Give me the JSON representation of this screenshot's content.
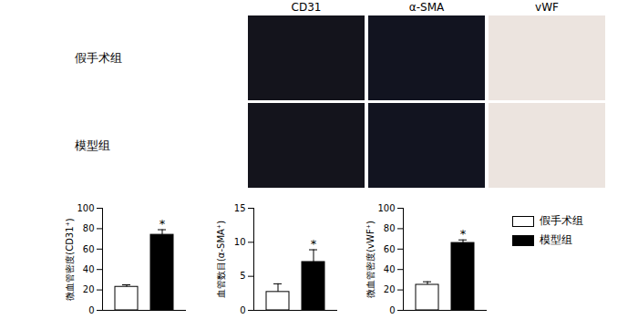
{
  "image_panel": {
    "columns": [
      "CD31",
      "α-SMA",
      "vWF"
    ],
    "rows": [
      "假手术组",
      "模型组"
    ]
  },
  "chart_data": [
    {
      "type": "bar",
      "ylabel": "微血管密度(CD31⁺)",
      "ylim": [
        0,
        100
      ],
      "yticks": [
        0,
        20,
        40,
        60,
        80,
        100
      ],
      "tick_labels": "y",
      "series": [
        {
          "name": "假手术组",
          "color": "#ffffff",
          "values": [
            23
          ],
          "error": [
            2
          ]
        },
        {
          "name": "模型组",
          "color": "#000000",
          "values": [
            74
          ],
          "error": [
            5
          ]
        }
      ],
      "annotations": [
        {
          "series": "模型组",
          "text": "*"
        }
      ]
    },
    {
      "type": "bar",
      "ylabel": "血管数目(α-SMA⁺)",
      "ylim": [
        0,
        15
      ],
      "yticks": [
        0,
        5,
        10,
        15
      ],
      "tick_labels": "y",
      "series": [
        {
          "name": "假手术组",
          "color": "#ffffff",
          "values": [
            2.7
          ],
          "error": [
            1.2
          ]
        },
        {
          "name": "模型组",
          "color": "#000000",
          "values": [
            7.1
          ],
          "error": [
            1.8
          ]
        }
      ],
      "annotations": [
        {
          "series": "模型组",
          "text": "*"
        }
      ]
    },
    {
      "type": "bar",
      "ylabel": "微血管密度(vWF⁺)",
      "ylim": [
        0,
        100
      ],
      "yticks": [
        0,
        20,
        40,
        60,
        80,
        100
      ],
      "tick_labels": "y",
      "legend": "right",
      "series": [
        {
          "name": "假手术组",
          "color": "#ffffff",
          "values": [
            25
          ],
          "error": [
            3
          ]
        },
        {
          "name": "模型组",
          "color": "#000000",
          "values": [
            66
          ],
          "error": [
            3
          ]
        }
      ],
      "annotations": [
        {
          "series": "模型组",
          "text": "*"
        }
      ]
    }
  ]
}
